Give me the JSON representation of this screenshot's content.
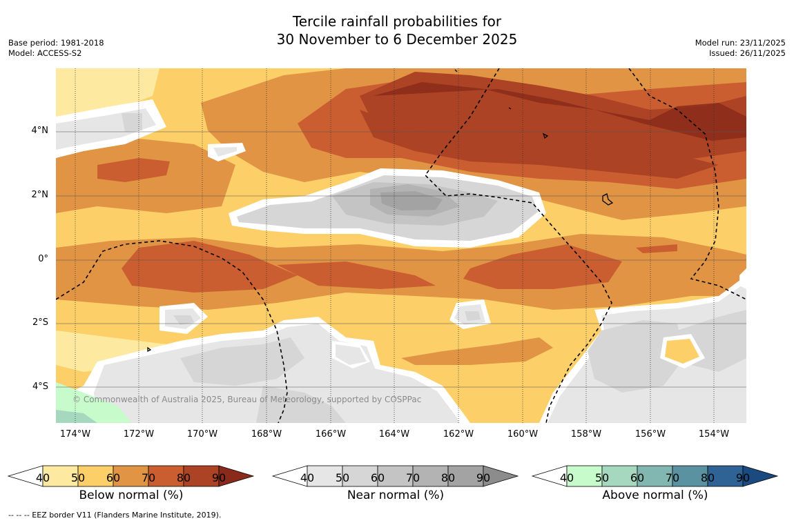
{
  "title": {
    "line1": "Tercile rainfall probabilities for",
    "line2": "30 November to 6 December 2025"
  },
  "meta": {
    "base_period": "Base period: 1981-2018",
    "model": "Model: ACCESS-S2",
    "model_run": "Model run: 23/11/2025",
    "issued": "Issued: 26/11/2025"
  },
  "axes": {
    "lat_labels": [
      "4°N",
      "2°N",
      "0°",
      "2°S",
      "4°S"
    ],
    "lon_labels": [
      "174°W",
      "172°W",
      "170°W",
      "168°W",
      "166°W",
      "164°W",
      "162°W",
      "160°W",
      "158°W",
      "156°W",
      "154°W"
    ]
  },
  "copyright": "© Commonwealth of Australia 2025, Bureau of Meteorology, supported by COSPPac",
  "legends": [
    {
      "name": "below",
      "title": "Below normal (%)",
      "low_color": "#ffffff",
      "colors": [
        "#fdeaa0",
        "#fccf68",
        "#e09444",
        "#cb5e30",
        "#ab4324"
      ],
      "high_color": "#8a2a1a",
      "ticks": [
        "40",
        "50",
        "60",
        "70",
        "80",
        "90"
      ]
    },
    {
      "name": "near",
      "title": "Near normal (%)",
      "low_color": "#ffffff",
      "colors": [
        "#e6e6e6",
        "#d6d6d6",
        "#c4c4c4",
        "#b3b3b3",
        "#a3a3a3"
      ],
      "high_color": "#8c8c8c",
      "ticks": [
        "40",
        "50",
        "60",
        "70",
        "80",
        "90"
      ]
    },
    {
      "name": "above",
      "title": "Above normal (%)",
      "low_color": "#ffffff",
      "colors": [
        "#c8fbcb",
        "#a6d8bf",
        "#82b7b1",
        "#5a92a1",
        "#2f6396"
      ],
      "high_color": "#1b4a80",
      "ticks": [
        "40",
        "50",
        "60",
        "70",
        "80",
        "90"
      ]
    }
  ],
  "footnote": "--  --  -- EEZ border V11 (Flanders Marine Institute, 2019)."
}
